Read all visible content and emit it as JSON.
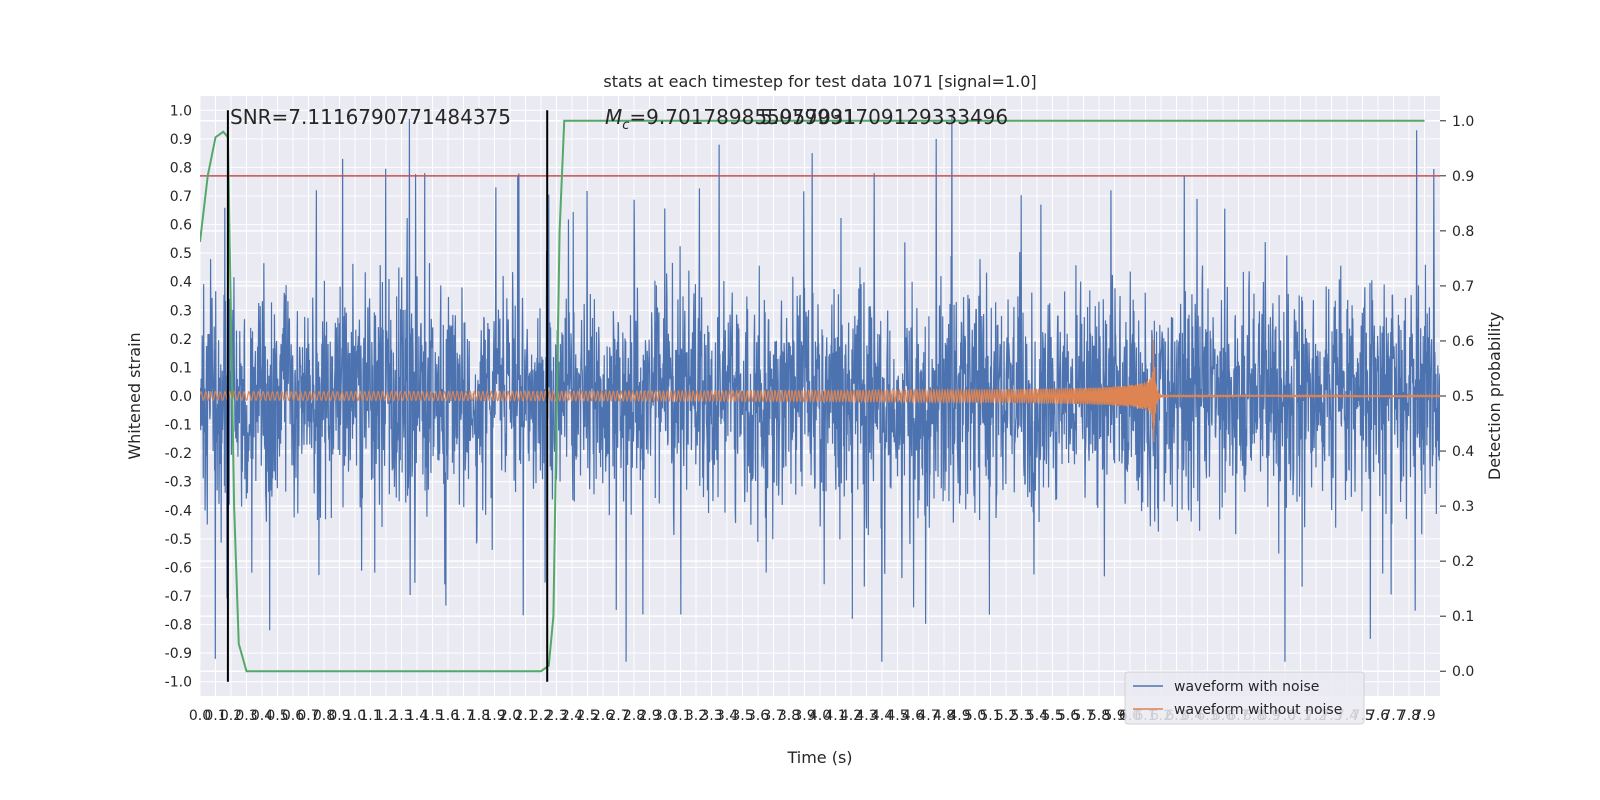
{
  "chart_data": {
    "type": "line",
    "title": "stats at each timestep for test data 1071 [signal=1.0]",
    "xlabel": "Time (s)",
    "ylabel": "Whitened strain",
    "y2label": "Detection probability",
    "xlim": [
      0,
      8
    ],
    "ylim": [
      -1.05,
      1.05
    ],
    "y2lim": [
      -0.045,
      1.045
    ],
    "x_ticks": [
      0.0,
      0.1,
      0.2,
      0.3,
      0.4,
      0.5,
      0.6,
      0.7,
      0.8,
      0.9,
      1.0,
      1.1,
      1.2,
      1.3,
      1.4,
      1.5,
      1.6,
      1.7,
      1.8,
      1.9,
      2.0,
      2.1,
      2.2,
      2.3,
      2.4,
      2.5,
      2.6,
      2.7,
      2.8,
      2.9,
      3.0,
      3.1,
      3.2,
      3.3,
      3.4,
      3.5,
      3.6,
      3.7,
      3.8,
      3.9,
      4.0,
      4.1,
      4.2,
      4.3,
      4.4,
      4.5,
      4.6,
      4.7,
      4.8,
      4.9,
      5.0,
      5.1,
      5.2,
      5.3,
      5.4,
      5.5,
      5.6,
      5.7,
      5.8,
      5.9,
      6.0,
      6.1,
      6.2,
      6.3,
      6.4,
      6.5,
      6.6,
      6.7,
      6.8,
      6.9,
      7.0,
      7.1,
      7.2,
      7.3,
      7.4,
      7.5,
      7.6,
      7.7,
      7.8,
      7.9
    ],
    "y_ticks": [
      -1.0,
      -0.9,
      -0.8,
      -0.7,
      -0.6,
      -0.5,
      -0.4,
      -0.3,
      -0.2,
      -0.1,
      0.0,
      0.1,
      0.2,
      0.3,
      0.4,
      0.5,
      0.6,
      0.7,
      0.8,
      0.9,
      1.0
    ],
    "y2_ticks": [
      0.0,
      0.1,
      0.2,
      0.3,
      0.4,
      0.5,
      0.6,
      0.7,
      0.8,
      0.9,
      1.0
    ],
    "grid": true,
    "legend_position": "lower-right",
    "annotations": {
      "snr": "SNR=7.1116790771484375",
      "mc_prefix": "M",
      "mc_sub": "c",
      "mc_value": "=9.701789855957031",
      "overlap": "5.079991709129333496"
    },
    "series": [
      {
        "name": "waveform with noise",
        "color": "#4c72b0",
        "kind": "noise",
        "x_range": [
          0,
          8
        ],
        "typical_amplitude": 0.5,
        "peaks": [
          {
            "x": 0.75,
            "y": 0.72
          },
          {
            "x": 0.92,
            "y": 0.83
          },
          {
            "x": 1.35,
            "y": 0.97
          },
          {
            "x": 1.45,
            "y": 0.78
          },
          {
            "x": 2.05,
            "y": 0.77
          },
          {
            "x": 3.35,
            "y": 0.88
          },
          {
            "x": 3.95,
            "y": 0.85
          },
          {
            "x": 4.85,
            "y": 0.98
          },
          {
            "x": 4.75,
            "y": 0.9
          },
          {
            "x": 7.85,
            "y": 0.93
          },
          {
            "x": 4.35,
            "y": 0.78
          },
          {
            "x": 6.35,
            "y": 0.77
          }
        ],
        "troughs": [
          {
            "x": 0.1,
            "y": -0.92
          },
          {
            "x": 2.75,
            "y": -0.93
          },
          {
            "x": 4.4,
            "y": -0.93
          },
          {
            "x": 7.0,
            "y": -0.93
          },
          {
            "x": 0.45,
            "y": -0.82
          },
          {
            "x": 7.55,
            "y": -0.85
          }
        ]
      },
      {
        "name": "waveform without noise",
        "color": "#dd8452",
        "kind": "chirp",
        "start_amplitude": 0.015,
        "peak_time": 6.15,
        "peak_amplitude": 0.24
      },
      {
        "name": "detection probability",
        "color": "#55a868",
        "axis": "right",
        "x": [
          0.0,
          0.05,
          0.1,
          0.15,
          0.18,
          0.22,
          0.25,
          0.3,
          0.35,
          0.5,
          1.0,
          1.5,
          1.8,
          2.0,
          2.2,
          2.25,
          2.28,
          2.32,
          2.35,
          2.4,
          3.0,
          4.0,
          5.0,
          6.0,
          7.0,
          7.9
        ],
        "y": [
          0.78,
          0.9,
          0.97,
          0.98,
          0.97,
          0.3,
          0.05,
          0.0,
          0.0,
          0.0,
          0.0,
          0.0,
          0.0,
          0.0,
          0.0,
          0.01,
          0.1,
          0.8,
          1.0,
          1.0,
          1.0,
          1.0,
          1.0,
          1.0,
          1.0,
          1.0
        ]
      },
      {
        "name": "threshold",
        "color": "#c44e52",
        "axis": "right",
        "y": 0.9
      }
    ],
    "vlines": [
      {
        "x": 0.18,
        "color": "#000000"
      },
      {
        "x": 2.24,
        "color": "#000000"
      }
    ]
  }
}
